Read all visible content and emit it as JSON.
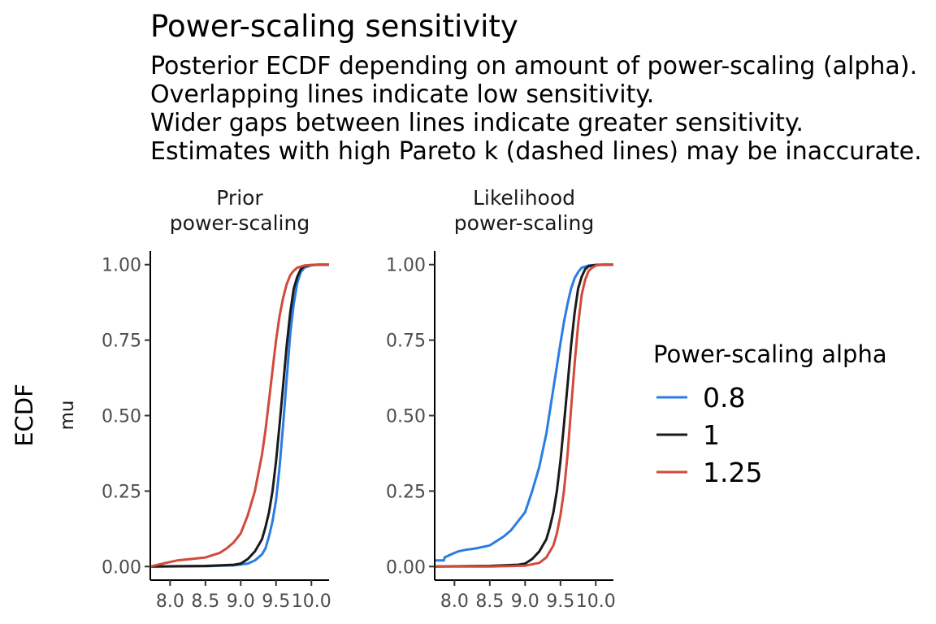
{
  "chart_data": {
    "type": "line",
    "title": "Power-scaling sensitivity",
    "subtitle": [
      "Posterior ECDF depending on amount of power-scaling (alpha).",
      "Overlapping lines indicate low sensitivity.",
      "Wider gaps between lines indicate greater sensitivity.",
      "Estimates with high Pareto k (dashed lines) may be inaccurate."
    ],
    "ylabel": "ECDF",
    "row_label": "mu",
    "xlim": [
      7.72,
      10.25
    ],
    "ylim": [
      -0.045,
      1.045
    ],
    "x_ticks": [
      "8.0",
      "8.5",
      "9.0",
      "9.5",
      "10.0"
    ],
    "x_tick_values": [
      8.0,
      8.5,
      9.0,
      9.5,
      10.0
    ],
    "y_ticks": [
      "0.00",
      "0.25",
      "0.50",
      "0.75",
      "1.00"
    ],
    "y_tick_values": [
      0,
      0.25,
      0.5,
      0.75,
      1.0
    ],
    "grid": false,
    "legend": {
      "title": "Power-scaling alpha",
      "position": "right",
      "entries": [
        "0.8",
        "1",
        "1.25"
      ]
    },
    "colors": {
      "0.8": "#2a7de1",
      "1": "#1a1a1a",
      "1.25": "#d24a3a"
    },
    "panels": [
      {
        "label": [
          "Prior",
          "power-scaling"
        ],
        "series": [
          {
            "name": "0.8",
            "x": [
              7.72,
              8.5,
              8.9,
              9.1,
              9.2,
              9.3,
              9.35,
              9.4,
              9.45,
              9.5,
              9.55,
              9.6,
              9.65,
              9.7,
              9.75,
              9.8,
              9.85,
              9.9,
              10.0,
              10.1,
              10.25
            ],
            "y": [
              0.0,
              0.001,
              0.004,
              0.01,
              0.02,
              0.04,
              0.06,
              0.1,
              0.15,
              0.22,
              0.33,
              0.47,
              0.62,
              0.77,
              0.87,
              0.94,
              0.975,
              0.99,
              0.998,
              1.0,
              1.0
            ]
          },
          {
            "name": "1",
            "x": [
              7.72,
              8.5,
              8.9,
              9.0,
              9.1,
              9.2,
              9.3,
              9.35,
              9.4,
              9.45,
              9.5,
              9.55,
              9.6,
              9.65,
              9.7,
              9.75,
              9.8,
              9.85,
              9.9,
              10.0,
              10.1,
              10.25
            ],
            "y": [
              0.0,
              0.002,
              0.006,
              0.01,
              0.025,
              0.05,
              0.09,
              0.13,
              0.18,
              0.25,
              0.35,
              0.47,
              0.6,
              0.73,
              0.84,
              0.92,
              0.96,
              0.985,
              0.995,
              0.999,
              1.0,
              1.0
            ]
          },
          {
            "name": "1.25",
            "x": [
              7.72,
              7.9,
              8.1,
              8.3,
              8.5,
              8.7,
              8.8,
              8.9,
              9.0,
              9.1,
              9.2,
              9.3,
              9.35,
              9.4,
              9.45,
              9.5,
              9.55,
              9.6,
              9.65,
              9.7,
              9.75,
              9.8,
              9.9,
              10.0,
              10.1,
              10.25
            ],
            "y": [
              0.0,
              0.01,
              0.02,
              0.025,
              0.03,
              0.045,
              0.06,
              0.08,
              0.11,
              0.17,
              0.25,
              0.37,
              0.45,
              0.55,
              0.65,
              0.75,
              0.83,
              0.89,
              0.935,
              0.965,
              0.98,
              0.99,
              0.997,
              0.999,
              1.0,
              1.0
            ]
          }
        ]
      },
      {
        "label": [
          "Likelihood",
          "power-scaling"
        ],
        "series": [
          {
            "name": "0.8",
            "x": [
              7.72,
              7.85,
              7.86,
              7.95,
              8.05,
              8.15,
              8.3,
              8.5,
              8.6,
              8.7,
              8.8,
              8.9,
              9.0,
              9.1,
              9.2,
              9.3,
              9.4,
              9.5,
              9.55,
              9.6,
              9.65,
              9.7,
              9.75,
              9.8,
              9.9,
              10.0,
              10.1,
              10.25
            ],
            "y": [
              0.02,
              0.02,
              0.03,
              0.04,
              0.05,
              0.055,
              0.06,
              0.07,
              0.085,
              0.1,
              0.12,
              0.15,
              0.18,
              0.25,
              0.33,
              0.44,
              0.59,
              0.74,
              0.81,
              0.87,
              0.92,
              0.955,
              0.975,
              0.99,
              0.997,
              0.999,
              1.0,
              1.0
            ]
          },
          {
            "name": "1",
            "x": [
              7.72,
              8.5,
              8.9,
              9.0,
              9.1,
              9.2,
              9.3,
              9.35,
              9.4,
              9.45,
              9.5,
              9.55,
              9.6,
              9.65,
              9.7,
              9.75,
              9.8,
              9.85,
              9.9,
              10.0,
              10.1,
              10.25
            ],
            "y": [
              0.0,
              0.002,
              0.006,
              0.01,
              0.025,
              0.05,
              0.09,
              0.13,
              0.18,
              0.25,
              0.35,
              0.47,
              0.6,
              0.73,
              0.84,
              0.92,
              0.96,
              0.985,
              0.995,
              0.999,
              1.0,
              1.0
            ]
          },
          {
            "name": "1.25",
            "x": [
              7.72,
              8.5,
              9.0,
              9.2,
              9.3,
              9.4,
              9.45,
              9.5,
              9.55,
              9.6,
              9.65,
              9.7,
              9.75,
              9.8,
              9.85,
              9.9,
              9.95,
              10.0,
              10.1,
              10.25
            ],
            "y": [
              0.0,
              0.0,
              0.003,
              0.012,
              0.03,
              0.07,
              0.11,
              0.17,
              0.25,
              0.37,
              0.52,
              0.67,
              0.8,
              0.9,
              0.95,
              0.98,
              0.99,
              0.997,
              1.0,
              1.0
            ]
          }
        ]
      }
    ]
  }
}
